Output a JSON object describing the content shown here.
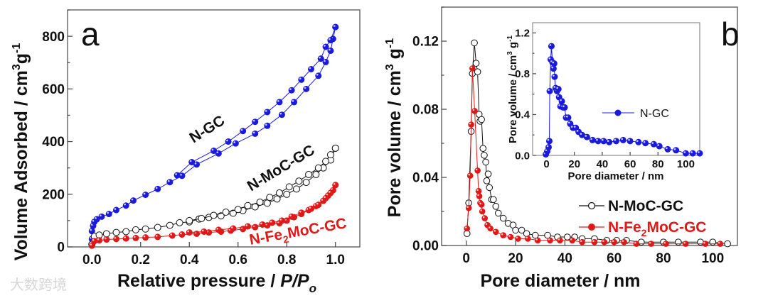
{
  "colors": {
    "blue": "#1a1adc",
    "red": "#e01818",
    "black": "#111111"
  },
  "watermark": "大数跨境",
  "chart_data": [
    {
      "type": "line",
      "panel_label": "a",
      "title": "",
      "xlabel": "Relative pressure / ",
      "xlabel_italic": "P/P",
      "xlabel_sub": "o",
      "ylabel": "Volume Adsorbed / cm",
      "ylabel_sup1": "3",
      "ylabel_mid": "g",
      "ylabel_sup2": "-1",
      "xlim": [
        -0.1,
        1.1
      ],
      "ylim": [
        0,
        900
      ],
      "xticks": [
        "0.0",
        "0.2",
        "0.4",
        "0.6",
        "0.8",
        "1.0"
      ],
      "yticks": [
        "0",
        "200",
        "400",
        "600",
        "800"
      ],
      "annotations": {
        "ngc": "N-GC",
        "nmoc": "N-MoC-GC",
        "nfe_a": "N-Fe",
        "nfe_sub": "2",
        "nfe_b": "MoC-GC"
      },
      "series": [
        {
          "name": "N-GC adsorption",
          "marker": "filled",
          "color": "#1a1adc",
          "x": [
            0,
            0,
            0,
            0.005,
            0.01,
            0.02,
            0.04,
            0.07,
            0.1,
            0.14,
            0.17,
            0.22,
            0.27,
            0.32,
            0.37,
            0.43,
            0.52,
            0.59,
            0.67,
            0.72,
            0.78,
            0.83,
            0.88,
            0.93,
            0.96,
            0.98,
            0.99,
            1.0
          ],
          "y": [
            5,
            30,
            60,
            80,
            95,
            105,
            115,
            125,
            140,
            157,
            176,
            198,
            220,
            246,
            270,
            313,
            355,
            393,
            430,
            460,
            502,
            550,
            600,
            650,
            702,
            745,
            790,
            835
          ]
        },
        {
          "name": "N-GC desorption",
          "marker": "filled",
          "color": "#1a1adc",
          "x": [
            1.0,
            0.98,
            0.96,
            0.94,
            0.9,
            0.86,
            0.82,
            0.77,
            0.72,
            0.67,
            0.62,
            0.56,
            0.5,
            0.41,
            0.35
          ],
          "y": [
            835,
            785,
            760,
            715,
            675,
            635,
            595,
            550,
            512,
            475,
            440,
            400,
            365,
            322,
            272
          ]
        },
        {
          "name": "N-MoC-GC adsorption",
          "marker": "open",
          "color": "#111111",
          "x": [
            0,
            0.01,
            0.03,
            0.06,
            0.1,
            0.14,
            0.18,
            0.22,
            0.27,
            0.32,
            0.36,
            0.4,
            0.44,
            0.48,
            0.53,
            0.58,
            0.62,
            0.67,
            0.72,
            0.76,
            0.8,
            0.84,
            0.88,
            0.92,
            0.95,
            0.98,
            1.0
          ],
          "y": [
            10,
            40,
            45,
            50,
            55,
            58,
            65,
            68,
            74,
            82,
            92,
            95,
            106,
            112,
            118,
            128,
            138,
            152,
            166,
            182,
            200,
            220,
            245,
            275,
            300,
            330,
            375
          ]
        },
        {
          "name": "N-MoC-GC desorption",
          "marker": "open",
          "color": "#111111",
          "x": [
            1.0,
            0.98,
            0.96,
            0.93,
            0.89,
            0.85,
            0.81,
            0.77,
            0.73,
            0.69,
            0.64,
            0.6,
            0.55,
            0.5,
            0.45,
            0.4
          ],
          "y": [
            375,
            350,
            325,
            300,
            275,
            250,
            228,
            205,
            188,
            170,
            157,
            142,
            132,
            120,
            108,
            100
          ]
        },
        {
          "name": "N-Fe2MoC-GC adsorption",
          "marker": "filled",
          "color": "#e01818",
          "x": [
            0,
            0.01,
            0.03,
            0.06,
            0.1,
            0.14,
            0.18,
            0.22,
            0.27,
            0.33,
            0.37,
            0.43,
            0.48,
            0.53,
            0.57,
            0.62,
            0.67,
            0.72,
            0.77,
            0.8,
            0.83,
            0.86,
            0.89,
            0.92,
            0.95,
            0.97,
            0.99,
            1.0
          ],
          "y": [
            5,
            22,
            25,
            28,
            30,
            32,
            34,
            36,
            38,
            43,
            47,
            50,
            55,
            58,
            62,
            68,
            75,
            82,
            90,
            100,
            113,
            125,
            140,
            155,
            175,
            195,
            215,
            235
          ]
        },
        {
          "name": "N-Fe2MoC-GC desorption",
          "marker": "filled",
          "color": "#e01818",
          "x": [
            1.0,
            0.98,
            0.96,
            0.93,
            0.9,
            0.86,
            0.82,
            0.78,
            0.74,
            0.7,
            0.64,
            0.58,
            0.52,
            0.46,
            0.4
          ],
          "y": [
            235,
            205,
            185,
            160,
            145,
            130,
            115,
            100,
            92,
            85,
            78,
            70,
            65,
            58,
            55
          ]
        }
      ]
    },
    {
      "type": "line",
      "panel_label": "b",
      "xlabel": "Pore diameter / nm",
      "ylabel": "Pore volume / cm",
      "ylabel_sup1": "3",
      "ylabel_mid": " g",
      "ylabel_sup2": "-1",
      "xlim": [
        -10,
        110
      ],
      "ylim": [
        0,
        0.14
      ],
      "xticks": [
        "0",
        "20",
        "40",
        "60",
        "80",
        "100"
      ],
      "yticks": [
        "0.00",
        "0.04",
        "0.08",
        "0.12"
      ],
      "legend_position": "bottom-right",
      "legend": {
        "nmoc": "N-MoC-GC",
        "nfe_a": "N-Fe",
        "nfe_sub": "2",
        "nfe_b": "MoC-GC"
      },
      "series": [
        {
          "name": "N-MoC-GC",
          "marker": "open",
          "color": "#111111",
          "x": [
            0.3,
            1,
            2,
            2.5,
            3.3,
            4,
            4.6,
            5.2,
            5.6,
            6.2,
            6.8,
            7.3,
            7.9,
            8.3,
            8.9,
            9.4,
            10.3,
            11,
            12,
            13,
            15,
            17,
            19,
            20,
            22.5,
            24.5,
            28,
            33,
            37,
            41,
            44,
            47,
            52,
            57,
            61,
            65,
            71,
            80,
            86,
            95,
            100,
            106
          ],
          "y": [
            0.007,
            0.025,
            0.067,
            0.101,
            0.119,
            0.107,
            0.102,
            0.077,
            0.073,
            0.074,
            0.057,
            0.053,
            0.049,
            0.038,
            0.042,
            0.034,
            0.027,
            0.027,
            0.023,
            0.019,
            0.016,
            0.013,
            0.012,
            0.009,
            0.009,
            0.007,
            0.006,
            0.006,
            0.005,
            0.005,
            0.005,
            0.004,
            0.004,
            0.003,
            0.003,
            0.003,
            0.002,
            0.002,
            0.002,
            0.002,
            0.002,
            0.001
          ]
        },
        {
          "name": "N-Fe2MoC-GC",
          "marker": "filled",
          "color": "#e01818",
          "x": [
            0.3,
            1,
            1.6,
            2,
            2.5,
            3.4,
            4.6,
            5,
            5.3,
            5.7,
            6.2,
            6.5,
            7.5,
            8.6,
            9.8,
            12,
            15,
            18,
            21,
            25,
            29,
            34,
            38,
            43,
            47,
            52,
            56,
            60,
            64,
            69,
            75,
            81,
            89,
            97,
            103
          ],
          "y": [
            0.01,
            0.022,
            0.041,
            0.071,
            0.104,
            0.079,
            0.044,
            0.032,
            0.029,
            0.025,
            0.024,
            0.02,
            0.016,
            0.012,
            0.01,
            0.008,
            0.006,
            0.005,
            0.004,
            0.004,
            0.003,
            0.003,
            0.003,
            0.003,
            0.002,
            0.002,
            0.002,
            0.002,
            0.002,
            0.001,
            0.001,
            0.001,
            0.001,
            0.001,
            0.001
          ]
        }
      ]
    },
    {
      "type": "line",
      "panel_label": "b-inset",
      "xlabel": "Pore diameter / nm",
      "ylabel": "Pore volume / cm",
      "ylabel_sup1": "3",
      "ylabel_mid": " g",
      "ylabel_sup2": "-1",
      "xlim": [
        -10,
        110
      ],
      "ylim": [
        0,
        1.3
      ],
      "xticks": [
        "0",
        "20",
        "40",
        "60",
        "80",
        "100"
      ],
      "yticks": [
        "0.0",
        "0.4",
        "0.8",
        "1.2"
      ],
      "legend_position": "center-right",
      "legend": {
        "ngc": "N-GC"
      },
      "series": [
        {
          "name": "N-GC",
          "marker": "filled",
          "color": "#1a1adc",
          "x": [
            -0.5,
            0.5,
            1.5,
            2,
            2.3,
            3,
            3.5,
            4.3,
            5,
            5.5,
            5.8,
            6.5,
            7.5,
            8.5,
            9,
            10,
            11,
            12,
            13,
            14,
            15.5,
            17,
            19,
            21,
            23,
            25.5,
            29,
            33,
            37,
            41,
            45,
            50,
            55,
            60,
            66,
            71,
            77,
            81,
            87,
            93,
            100,
            105,
            110
          ],
          "y": [
            0.01,
            0.04,
            0.08,
            0.14,
            0.63,
            0.94,
            1.07,
            0.91,
            0.85,
            0.9,
            0.77,
            0.66,
            0.63,
            0.65,
            0.57,
            0.48,
            0.53,
            0.47,
            0.47,
            0.37,
            0.37,
            0.31,
            0.27,
            0.27,
            0.23,
            0.2,
            0.18,
            0.15,
            0.14,
            0.14,
            0.13,
            0.14,
            0.15,
            0.14,
            0.13,
            0.12,
            0.11,
            0.09,
            0.06,
            0.05,
            0.02,
            0.02,
            0.02
          ]
        }
      ]
    }
  ]
}
